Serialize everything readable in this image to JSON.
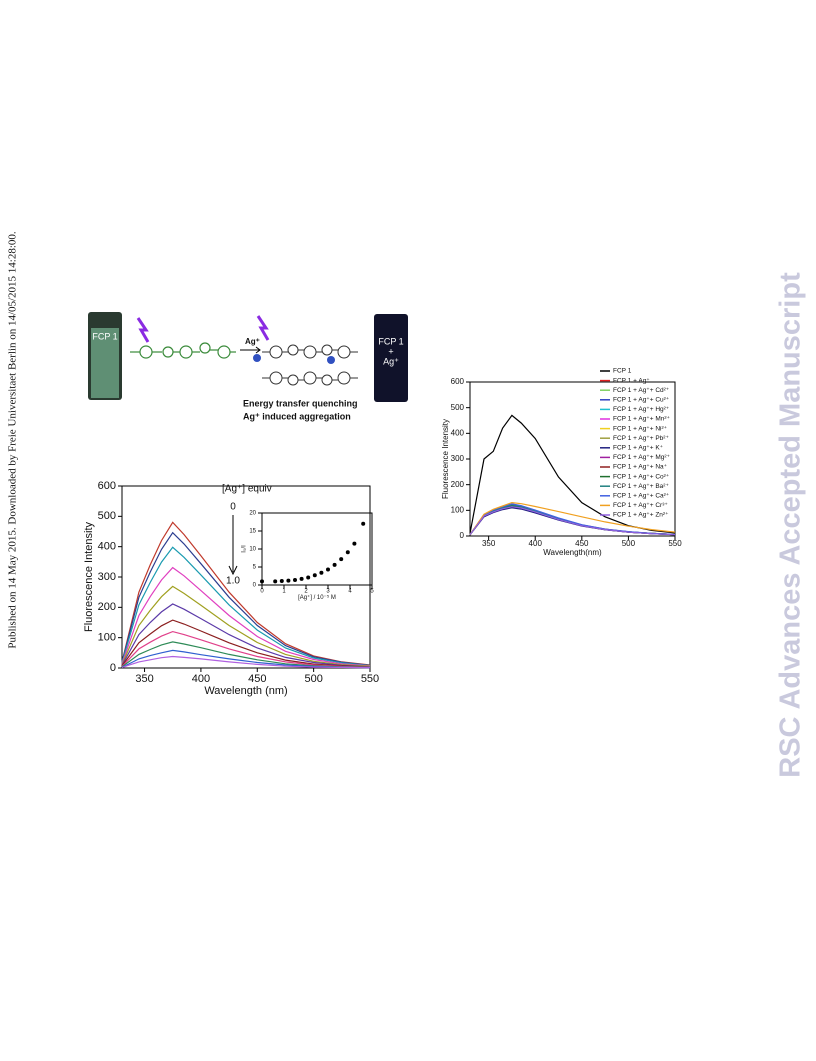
{
  "sidebar": "Published on 14 May 2015. Downloaded by Freie Universitaet Berlin on 14/05/2015 14:28:00.",
  "watermark": "RSC Advances Accepted Manuscript",
  "graphic": {
    "vial_left": "FCP 1",
    "vial_right": [
      "FCP 1",
      "+",
      "Ag⁺"
    ],
    "arrow_label": "Ag⁺",
    "caption": [
      "Energy transfer quenching",
      "Ag⁺ induced aggregation"
    ]
  },
  "chart_data": [
    {
      "type": "line",
      "xlabel": "Wavelength (nm)",
      "ylabel": "Fluorescence Intensity",
      "annotations": [
        "[Ag⁺] equiv",
        "0",
        "1.0"
      ],
      "xlim": [
        330,
        550
      ],
      "xticks": [
        350,
        400,
        450,
        500,
        550
      ],
      "ylim": [
        0,
        600
      ],
      "yticks": [
        0,
        100,
        200,
        300,
        400,
        500,
        600
      ],
      "x": [
        330,
        345,
        355,
        365,
        375,
        385,
        400,
        425,
        450,
        475,
        500,
        525,
        550
      ],
      "series": [
        {
          "color": "#c0392b",
          "values": [
            20,
            250,
            340,
            420,
            480,
            440,
            370,
            250,
            150,
            80,
            40,
            20,
            10
          ]
        },
        {
          "color": "#2c3e90",
          "values": [
            19,
            233,
            316,
            391,
            446,
            409,
            344,
            233,
            140,
            74,
            37,
            19,
            9
          ]
        },
        {
          "color": "#1a9bb0",
          "values": [
            17,
            208,
            282,
            349,
            398,
            365,
            307,
            208,
            125,
            66,
            33,
            17,
            8
          ]
        },
        {
          "color": "#e040c0",
          "values": [
            14,
            173,
            235,
            290,
            331,
            304,
            255,
            173,
            104,
            55,
            28,
            14,
            7
          ]
        },
        {
          "color": "#a0a020",
          "values": [
            11,
            140,
            190,
            235,
            269,
            246,
            207,
            140,
            84,
            45,
            22,
            11,
            6
          ]
        },
        {
          "color": "#5b3aa8",
          "values": [
            9,
            110,
            150,
            185,
            211,
            194,
            163,
            110,
            66,
            35,
            18,
            9,
            4
          ]
        },
        {
          "color": "#8b1e1e",
          "values": [
            7,
            83,
            112,
            139,
            158,
            145,
            122,
            83,
            50,
            26,
            13,
            7,
            3
          ]
        },
        {
          "color": "#e0408a",
          "values": [
            5,
            63,
            85,
            105,
            120,
            110,
            93,
            63,
            38,
            20,
            10,
            5,
            3
          ]
        },
        {
          "color": "#2e8b57",
          "values": [
            4,
            45,
            61,
            76,
            86,
            79,
            67,
            45,
            27,
            14,
            7,
            4,
            2
          ]
        },
        {
          "color": "#3060d0",
          "values": [
            2,
            30,
            41,
            50,
            58,
            53,
            44,
            30,
            18,
            10,
            5,
            2,
            1
          ]
        },
        {
          "color": "#b060e0",
          "values": [
            2,
            20,
            27,
            34,
            38,
            35,
            30,
            20,
            12,
            6,
            3,
            2,
            1
          ]
        }
      ]
    },
    {
      "type": "scatter",
      "xlabel": "[Ag⁺] / 10⁻⁵ M",
      "ylabel": "I₀/I",
      "xlim": [
        0,
        5
      ],
      "xticks": [
        0,
        1,
        2,
        3,
        4,
        5
      ],
      "ylim": [
        0,
        20
      ],
      "yticks": [
        0,
        5,
        10,
        15,
        20
      ],
      "color": "#000000",
      "x": [
        0,
        0.6,
        0.9,
        1.2,
        1.5,
        1.8,
        2.1,
        2.4,
        2.7,
        3.0,
        3.3,
        3.6,
        3.9,
        4.2,
        4.6
      ],
      "values": [
        1,
        1,
        1.1,
        1.2,
        1.4,
        1.7,
        2.1,
        2.7,
        3.4,
        4.3,
        5.6,
        7.2,
        9.1,
        11.5,
        17
      ]
    },
    {
      "type": "line",
      "xlabel": "Wavelength(nm)",
      "ylabel": "Fluorescence Intensity",
      "xlim": [
        330,
        550
      ],
      "xticks": [
        350,
        400,
        450,
        500,
        550
      ],
      "ylim": [
        0,
        600
      ],
      "yticks": [
        0,
        100,
        200,
        300,
        400,
        500,
        600
      ],
      "x": [
        330,
        345,
        355,
        365,
        375,
        385,
        400,
        425,
        450,
        475,
        500,
        525,
        550
      ],
      "series": [
        {
          "name": "FCP 1",
          "color": "#000000",
          "values": [
            10,
            300,
            330,
            420,
            470,
            440,
            380,
            230,
            130,
            75,
            40,
            22,
            12
          ]
        },
        {
          "name": "FCP 1 + Ag⁺",
          "color": "#e02020",
          "values": [
            5,
            78,
            95,
            108,
            118,
            112,
            96,
            66,
            42,
            26,
            16,
            10,
            6
          ]
        },
        {
          "name": "FCP 1 + Ag⁺+ Cd²⁺",
          "color": "#80d060",
          "values": [
            5,
            80,
            97,
            110,
            120,
            113,
            97,
            67,
            42,
            26,
            16,
            10,
            6
          ]
        },
        {
          "name": "FCP 1 + Ag⁺+ Cu²⁺",
          "color": "#3040c0",
          "values": [
            5,
            76,
            92,
            104,
            112,
            107,
            92,
            63,
            40,
            25,
            15,
            9,
            5
          ]
        },
        {
          "name": "FCP 1 + Ag⁺+ Hg²⁺",
          "color": "#20c0d0",
          "values": [
            5,
            79,
            96,
            109,
            119,
            112,
            96,
            66,
            41,
            26,
            16,
            10,
            6
          ]
        },
        {
          "name": "FCP 1 + Ag⁺+ Mn²⁺",
          "color": "#e030e0",
          "values": [
            5,
            81,
            98,
            111,
            122,
            115,
            98,
            68,
            43,
            27,
            16,
            10,
            6
          ]
        },
        {
          "name": "FCP 1 + Ag⁺+ Ni²⁺",
          "color": "#f0d020",
          "values": [
            5,
            77,
            93,
            106,
            115,
            109,
            94,
            64,
            40,
            25,
            15,
            9,
            5
          ]
        },
        {
          "name": "FCP 1 + Ag⁺+ Pb²⁺",
          "color": "#a0a040",
          "values": [
            5,
            82,
            100,
            113,
            124,
            117,
            100,
            69,
            43,
            27,
            16,
            10,
            6
          ]
        },
        {
          "name": "FCP 1 + Ag⁺+ K⁺",
          "color": "#202080",
          "values": [
            5,
            75,
            91,
            103,
            110,
            105,
            90,
            62,
            39,
            24,
            15,
            9,
            5
          ]
        },
        {
          "name": "FCP 1 + Ag⁺+ Mg²⁺",
          "color": "#a020a0",
          "values": [
            5,
            78,
            94,
            107,
            116,
            110,
            95,
            65,
            41,
            25,
            15,
            9,
            5
          ]
        },
        {
          "name": "FCP 1 + Ag⁺+ Na⁺",
          "color": "#902020",
          "values": [
            5,
            80,
            96,
            109,
            118,
            112,
            96,
            66,
            41,
            26,
            16,
            10,
            6
          ]
        },
        {
          "name": "FCP 1 + Ag⁺+ Co²⁺",
          "color": "#207030",
          "values": [
            5,
            79,
            95,
            108,
            117,
            111,
            95,
            65,
            41,
            25,
            15,
            9,
            5
          ]
        },
        {
          "name": "FCP 1 + Ag⁺+ Ba²⁺",
          "color": "#208080",
          "values": [
            5,
            81,
            97,
            110,
            121,
            114,
            97,
            67,
            42,
            26,
            16,
            10,
            6
          ]
        },
        {
          "name": "FCP 1 + Ag⁺+ Ca²⁺",
          "color": "#4060e0",
          "values": [
            5,
            83,
            101,
            114,
            125,
            118,
            101,
            70,
            44,
            27,
            17,
            10,
            6
          ]
        },
        {
          "name": "FCP 1 + Ag⁺+ Cr³⁺",
          "color": "#f0a020",
          "values": [
            5,
            85,
            104,
            117,
            130,
            126,
            115,
            95,
            75,
            55,
            38,
            25,
            15
          ]
        },
        {
          "name": "FCP 1 + Ag⁺+ Zn²⁺",
          "color": "#9060e0",
          "values": [
            5,
            78,
            94,
            106,
            114,
            109,
            94,
            64,
            40,
            25,
            15,
            9,
            5
          ]
        }
      ]
    }
  ]
}
